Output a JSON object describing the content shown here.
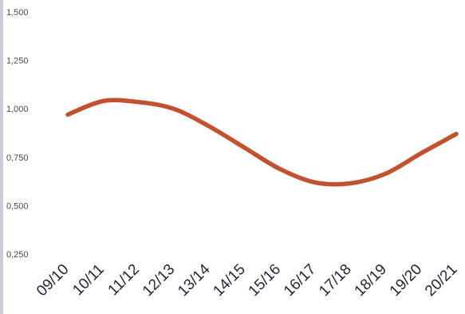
{
  "chart_data": {
    "type": "line",
    "title": "",
    "xlabel": "",
    "ylabel": "",
    "categories": [
      "09/10",
      "10/11",
      "11/12",
      "12/13",
      "13/14",
      "14/15",
      "15/16",
      "16/17",
      "17/18",
      "18/19",
      "19/20",
      "20/21"
    ],
    "series": [
      {
        "values": [
          0.97,
          1.04,
          1.035,
          1.0,
          0.91,
          0.8,
          0.69,
          0.62,
          0.615,
          0.665,
          0.77,
          0.87
        ]
      }
    ],
    "ylim": [
      0.25,
      1.5
    ],
    "yticks": [
      "1,500",
      "1,250",
      "1,000",
      "0,750",
      "0,500",
      "0,250"
    ],
    "grid": false,
    "legend": "none",
    "colors": {
      "line": "#c0522f",
      "ytick": "#444a55",
      "xtick": "#1f2633"
    }
  }
}
